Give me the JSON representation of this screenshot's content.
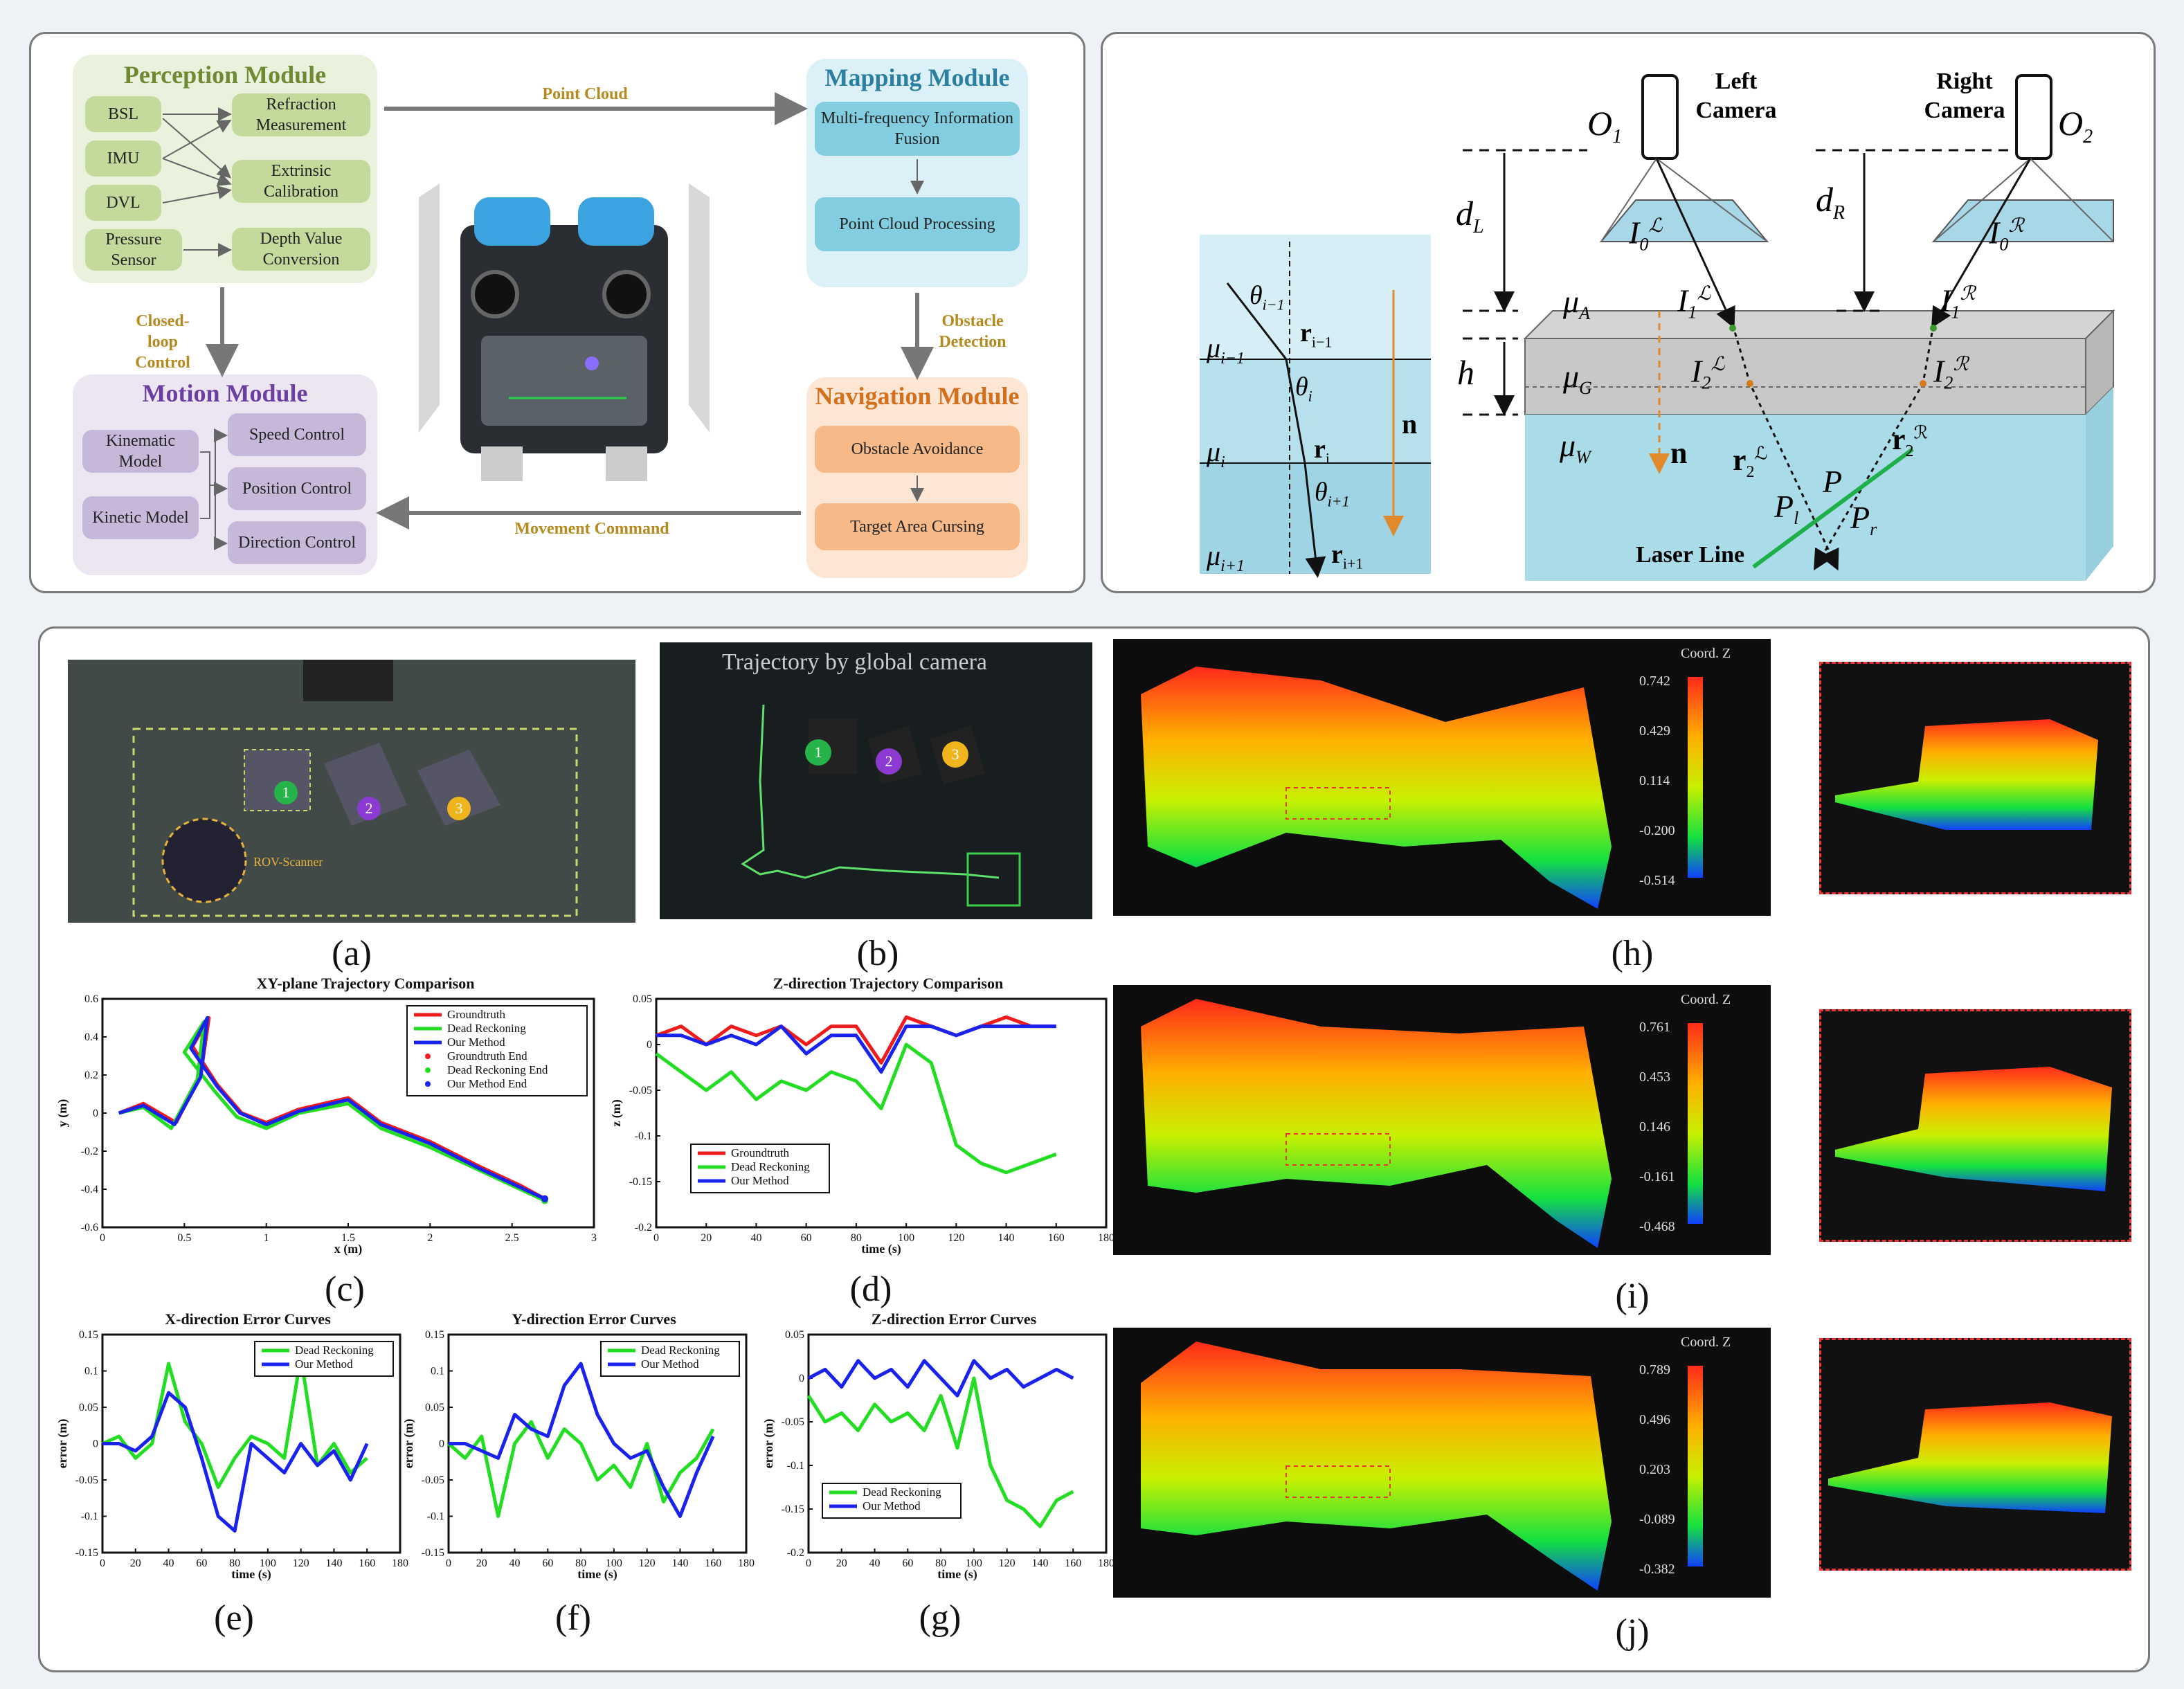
{
  "top_left": {
    "perception": {
      "title": "Perception Module",
      "sensors": [
        "BSL",
        "IMU",
        "DVL",
        "Pressure Sensor"
      ],
      "outputs": [
        "Refraction Measurement",
        "Extrinsic Calibration",
        "Depth Value Conversion"
      ]
    },
    "mapping": {
      "title": "Mapping Module",
      "steps": [
        "Multi-frequency Information Fusion",
        "Point Cloud Processing"
      ]
    },
    "motion": {
      "title": "Motion Module",
      "models": [
        "Kinematic Model",
        "Kinetic Model"
      ],
      "controls": [
        "Speed Control",
        "Position Control",
        "Direction Control"
      ]
    },
    "navigation": {
      "title": "Navigation Module",
      "steps": [
        "Obstacle Avoidance",
        "Target Area Cursing"
      ]
    },
    "arrows": {
      "point_cloud": "Point Cloud",
      "closed_loop": "Closed-loop Control",
      "obstacle_detection": "Obstacle Detection",
      "movement_command": "Movement Command"
    },
    "colors": {
      "green": "#c4d99c",
      "blue": "#82cde0",
      "purple": "#c6b8d8",
      "orange": "#f7b987"
    }
  },
  "top_right": {
    "left_camera": "Left Camera",
    "right_camera": "Right Camera",
    "o1": "O",
    "o1_sub": "1",
    "o2": "O",
    "o2_sub": "2",
    "dL": "d",
    "dL_sub": "L",
    "dR": "d",
    "dR_sub": "R",
    "h": "h",
    "muA": "μ",
    "muA_sub": "A",
    "muG": "μ",
    "muG_sub": "G",
    "muW": "μ",
    "muW_sub": "W",
    "n": "n",
    "laser_line": "Laser Line",
    "I0L": "I",
    "I0L_sub": "0",
    "I0L_sup": "ℒ",
    "I0R": "I",
    "I0R_sub": "0",
    "I0R_sup": "ℛ",
    "I1L": "I",
    "I1L_sub": "1",
    "I1L_sup": "ℒ",
    "I1R": "I",
    "I1R_sub": "1",
    "I1R_sup": "ℛ",
    "I2L": "I",
    "I2L_sub": "2",
    "I2L_sup": "ℒ",
    "I2R": "I",
    "I2R_sub": "2",
    "I2R_sup": "ℛ",
    "r2L": "r",
    "r2L_sub": "2",
    "r2L_sup": "ℒ",
    "r2R": "r",
    "r2R_sub": "2",
    "r2R_sup": "ℛ",
    "P": "P",
    "Pl": "P",
    "Pl_sub": "l",
    "Pr": "P",
    "Pr_sub": "r",
    "refraction": {
      "mu_im1": "μ",
      "mu_im1_sub": "i−1",
      "mu_i": "μ",
      "mu_i_sub": "i",
      "mu_ip1": "μ",
      "mu_ip1_sub": "i+1",
      "theta_im1": "θ",
      "theta_im1_sub": "i−1",
      "theta_i": "θ",
      "theta_i_sub": "i",
      "theta_ip1": "θ",
      "theta_ip1_sub": "i+1",
      "r_im1": "r",
      "r_im1_sub": "i−1",
      "r_i": "r",
      "r_i_sub": "i",
      "r_ip1": "r",
      "r_ip1_sub": "i+1",
      "n": "n"
    }
  },
  "photos": {
    "a_markers": [
      "1",
      "2",
      "3"
    ],
    "a_rov": "ROV-Scanner",
    "b_title": "Trajectory by global camera",
    "b_markers": [
      "1",
      "2",
      "3"
    ]
  },
  "captions": {
    "a": "(a)",
    "b": "(b)",
    "c": "(c)",
    "d": "(d)",
    "e": "(e)",
    "f": "(f)",
    "g": "(g)",
    "h": "(h)",
    "i": "(i)",
    "j": "(j)"
  },
  "colorbars": {
    "h": {
      "label": "Coord. Z",
      "ticks": [
        "0.742",
        "0.429",
        "0.114",
        "-0.200",
        "-0.514"
      ]
    },
    "i": {
      "label": "Coord. Z",
      "ticks": [
        "0.761",
        "0.453",
        "0.146",
        "-0.161",
        "-0.468"
      ]
    },
    "j": {
      "label": "Coord. Z",
      "ticks": [
        "0.789",
        "0.496",
        "0.203",
        "-0.089",
        "-0.382"
      ]
    }
  },
  "chart_data": [
    {
      "id": "c",
      "type": "line",
      "title": "XY-plane Trajectory Comparison",
      "xlabel": "x (m)",
      "ylabel": "y (m)",
      "xlim": [
        0,
        3
      ],
      "ylim": [
        -0.6,
        0.6
      ],
      "xticks": [
        "0",
        "0.5",
        "1",
        "1.5",
        "2",
        "2.5",
        "3"
      ],
      "yticks": [
        "0.6",
        "0.4",
        "0.2",
        "0",
        "-0.2",
        "-0.4",
        "-0.6"
      ],
      "legend": [
        "Groundtruth",
        "Dead Reckoning",
        "Our Method",
        "Groundtruth End",
        "Dead Reckoning End",
        "Our Method End"
      ],
      "series": [
        {
          "name": "Groundtruth",
          "color": "#ee1c1c",
          "x": [
            0.1,
            0.25,
            0.45,
            0.6,
            0.65,
            0.55,
            0.7,
            0.85,
            1.0,
            1.2,
            1.5,
            1.7,
            2.0,
            2.3,
            2.55,
            2.7
          ],
          "y": [
            0.0,
            0.05,
            -0.05,
            0.2,
            0.5,
            0.35,
            0.15,
            0.0,
            -0.05,
            0.02,
            0.08,
            -0.05,
            -0.15,
            -0.28,
            -0.38,
            -0.45
          ]
        },
        {
          "name": "Dead Reckoning",
          "color": "#22dd22",
          "x": [
            0.1,
            0.25,
            0.42,
            0.58,
            0.62,
            0.5,
            0.68,
            0.82,
            1.0,
            1.2,
            1.5,
            1.7,
            2.0,
            2.3,
            2.55,
            2.7
          ],
          "y": [
            0.0,
            0.03,
            -0.08,
            0.18,
            0.48,
            0.32,
            0.12,
            -0.02,
            -0.08,
            0.0,
            0.05,
            -0.08,
            -0.18,
            -0.3,
            -0.4,
            -0.46
          ]
        },
        {
          "name": "Our Method",
          "color": "#1a22ee",
          "x": [
            0.1,
            0.25,
            0.44,
            0.6,
            0.64,
            0.54,
            0.7,
            0.84,
            1.0,
            1.2,
            1.5,
            1.7,
            2.0,
            2.3,
            2.55,
            2.7
          ],
          "y": [
            0.0,
            0.04,
            -0.06,
            0.19,
            0.5,
            0.34,
            0.14,
            0.0,
            -0.06,
            0.01,
            0.07,
            -0.06,
            -0.16,
            -0.29,
            -0.39,
            -0.45
          ]
        }
      ]
    },
    {
      "id": "d",
      "type": "line",
      "title": "Z-direction Trajectory Comparison",
      "xlabel": "time (s)",
      "ylabel": "z (m)",
      "xlim": [
        0,
        180
      ],
      "ylim": [
        -0.2,
        0.05
      ],
      "xticks": [
        "0",
        "20",
        "40",
        "60",
        "80",
        "100",
        "120",
        "140",
        "160",
        "180"
      ],
      "yticks": [
        "0.05",
        "0",
        "-0.05",
        "-0.1",
        "-0.15",
        "-0.2"
      ],
      "legend": [
        "Groundtruth",
        "Dead Reckoning",
        "Our Method"
      ],
      "x": [
        0,
        10,
        20,
        30,
        40,
        50,
        60,
        70,
        80,
        90,
        100,
        110,
        120,
        130,
        140,
        150,
        160
      ],
      "series": [
        {
          "name": "Groundtruth",
          "color": "#ee1c1c",
          "values": [
            0.01,
            0.02,
            0.0,
            0.02,
            0.01,
            0.02,
            0.0,
            0.02,
            0.02,
            -0.02,
            0.03,
            0.02,
            0.01,
            0.02,
            0.03,
            0.02,
            0.02
          ]
        },
        {
          "name": "Dead Reckoning",
          "color": "#22dd22",
          "values": [
            -0.01,
            -0.03,
            -0.05,
            -0.03,
            -0.06,
            -0.04,
            -0.05,
            -0.03,
            -0.04,
            -0.07,
            0.0,
            -0.02,
            -0.11,
            -0.13,
            -0.14,
            -0.13,
            -0.12
          ]
        },
        {
          "name": "Our Method",
          "color": "#1a22ee",
          "values": [
            0.01,
            0.01,
            0.0,
            0.01,
            0.0,
            0.02,
            -0.01,
            0.01,
            0.01,
            -0.03,
            0.02,
            0.02,
            0.01,
            0.02,
            0.02,
            0.02,
            0.02
          ]
        }
      ]
    },
    {
      "id": "e",
      "type": "line",
      "title": "X-direction Error Curves",
      "xlabel": "time (s)",
      "ylabel": "error (m)",
      "xlim": [
        0,
        180
      ],
      "ylim": [
        -0.15,
        0.15
      ],
      "xticks": [
        "0",
        "20",
        "40",
        "60",
        "80",
        "100",
        "120",
        "140",
        "160",
        "180"
      ],
      "yticks": [
        "0.15",
        "0.1",
        "0.05",
        "0",
        "-0.05",
        "-0.1",
        "-0.15"
      ],
      "legend": [
        "Dead Reckoning",
        "Our Method"
      ],
      "x": [
        0,
        10,
        20,
        30,
        40,
        50,
        60,
        70,
        80,
        90,
        100,
        110,
        120,
        130,
        140,
        150,
        160
      ],
      "series": [
        {
          "name": "Dead Reckoning",
          "color": "#22dd22",
          "values": [
            0.0,
            0.01,
            -0.02,
            0.0,
            0.11,
            0.03,
            0.0,
            -0.06,
            -0.02,
            0.01,
            0.0,
            -0.02,
            0.12,
            -0.03,
            0.0,
            -0.04,
            -0.02
          ]
        },
        {
          "name": "Our Method",
          "color": "#1a22ee",
          "values": [
            0.0,
            0.0,
            -0.01,
            0.01,
            0.07,
            0.05,
            -0.02,
            -0.1,
            -0.12,
            0.0,
            -0.02,
            -0.04,
            0.0,
            -0.03,
            -0.01,
            -0.05,
            0.0
          ]
        }
      ]
    },
    {
      "id": "f",
      "type": "line",
      "title": "Y-direction Error Curves",
      "xlabel": "time (s)",
      "ylabel": "error (m)",
      "xlim": [
        0,
        180
      ],
      "ylim": [
        -0.15,
        0.15
      ],
      "xticks": [
        "0",
        "20",
        "40",
        "60",
        "80",
        "100",
        "120",
        "140",
        "160",
        "180"
      ],
      "yticks": [
        "0.15",
        "0.1",
        "0.05",
        "0",
        "-0.05",
        "-0.1",
        "-0.15"
      ],
      "legend": [
        "Dead Reckoning",
        "Our Method"
      ],
      "x": [
        0,
        10,
        20,
        30,
        40,
        50,
        60,
        70,
        80,
        90,
        100,
        110,
        120,
        130,
        140,
        150,
        160
      ],
      "series": [
        {
          "name": "Dead Reckoning",
          "color": "#22dd22",
          "values": [
            0.0,
            -0.02,
            0.01,
            -0.1,
            0.0,
            0.03,
            -0.02,
            0.02,
            0.0,
            -0.05,
            -0.03,
            -0.06,
            0.0,
            -0.08,
            -0.04,
            -0.02,
            0.02
          ]
        },
        {
          "name": "Our Method",
          "color": "#1a22ee",
          "values": [
            0.0,
            0.0,
            -0.01,
            -0.02,
            0.04,
            0.02,
            0.01,
            0.08,
            0.11,
            0.04,
            0.0,
            -0.02,
            -0.01,
            -0.06,
            -0.1,
            -0.04,
            0.01
          ]
        }
      ]
    },
    {
      "id": "g",
      "type": "line",
      "title": "Z-direction Error Curves",
      "xlabel": "time (s)",
      "ylabel": "error (m)",
      "xlim": [
        0,
        180
      ],
      "ylim": [
        -0.2,
        0.05
      ],
      "xticks": [
        "0",
        "20",
        "40",
        "60",
        "80",
        "100",
        "120",
        "140",
        "160",
        "180"
      ],
      "yticks": [
        "0.05",
        "0",
        "-0.05",
        "-0.1",
        "-0.15",
        "-0.2"
      ],
      "legend": [
        "Dead Reckoning",
        "Our Method"
      ],
      "x": [
        0,
        10,
        20,
        30,
        40,
        50,
        60,
        70,
        80,
        90,
        100,
        110,
        120,
        130,
        140,
        150,
        160
      ],
      "series": [
        {
          "name": "Dead Reckoning",
          "color": "#22dd22",
          "values": [
            -0.02,
            -0.05,
            -0.04,
            -0.06,
            -0.03,
            -0.05,
            -0.04,
            -0.06,
            -0.02,
            -0.08,
            0.0,
            -0.1,
            -0.14,
            -0.15,
            -0.17,
            -0.14,
            -0.13
          ]
        },
        {
          "name": "Our Method",
          "color": "#1a22ee",
          "values": [
            0.0,
            0.01,
            -0.01,
            0.02,
            0.0,
            0.01,
            -0.01,
            0.02,
            0.0,
            -0.02,
            0.02,
            0.0,
            0.01,
            -0.01,
            0.0,
            0.01,
            0.0
          ]
        }
      ]
    }
  ]
}
